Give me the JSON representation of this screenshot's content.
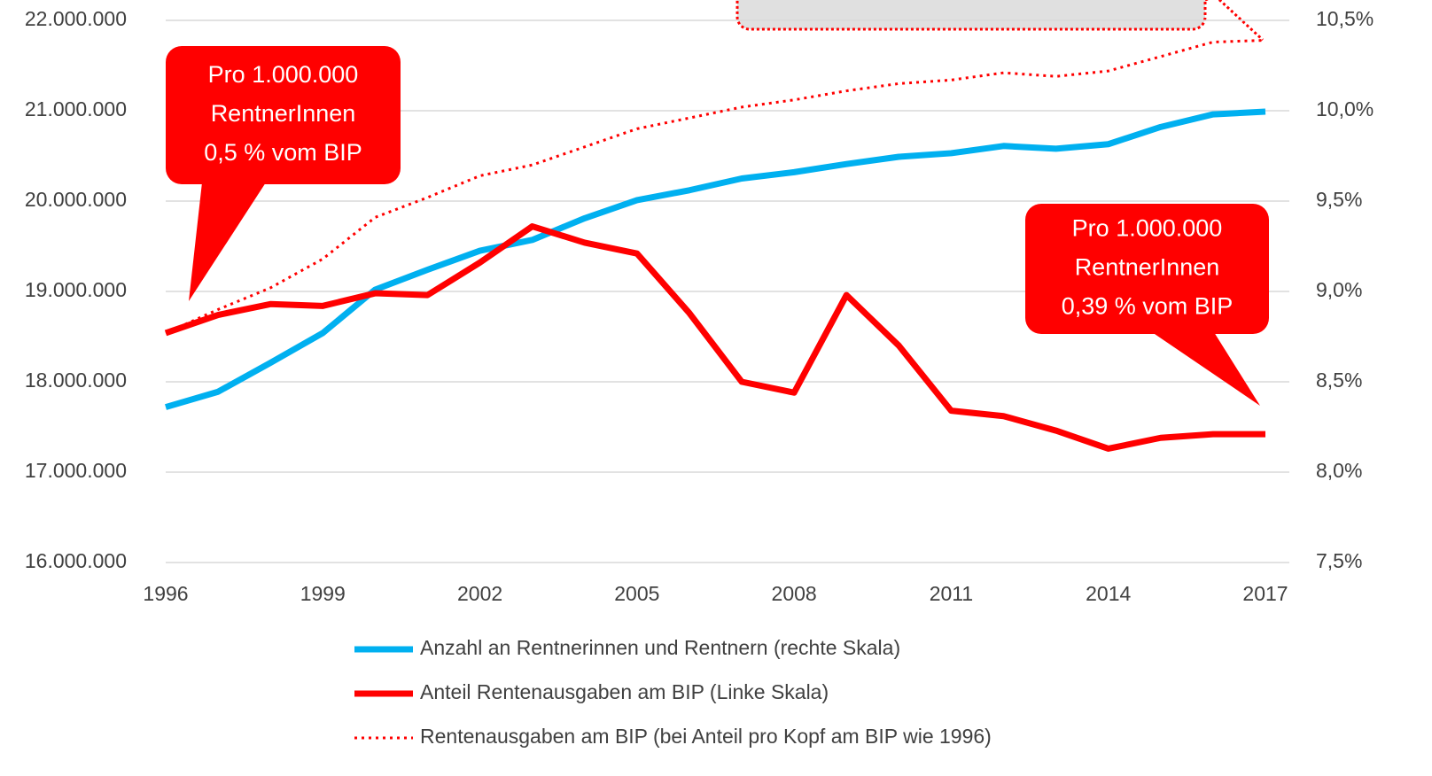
{
  "chart_data": {
    "type": "line",
    "x": [
      1996,
      1997,
      1998,
      1999,
      2000,
      2001,
      2002,
      2003,
      2004,
      2005,
      2006,
      2007,
      2008,
      2009,
      2010,
      2011,
      2012,
      2013,
      2014,
      2015,
      2016,
      2017
    ],
    "xlim": [
      1996,
      2017
    ],
    "xticks": [
      1996,
      1999,
      2002,
      2005,
      2008,
      2011,
      2014,
      2017
    ],
    "ylim": [
      16000000,
      22000000
    ],
    "yticks": [
      {
        "value": 16000000,
        "label": "16.000.000"
      },
      {
        "value": 17000000,
        "label": "17.000.000"
      },
      {
        "value": 18000000,
        "label": "18.000.000"
      },
      {
        "value": 19000000,
        "label": "19.000.000"
      },
      {
        "value": 20000000,
        "label": "20.000.000"
      },
      {
        "value": 21000000,
        "label": "21.000.000"
      },
      {
        "value": 22000000,
        "label": "22.000.000"
      }
    ],
    "y2lim": [
      7.5,
      10.5
    ],
    "y2ticks": [
      {
        "value": 7.5,
        "label": "7,5%"
      },
      {
        "value": 8.0,
        "label": "8,0%"
      },
      {
        "value": 8.5,
        "label": "8,5%"
      },
      {
        "value": 9.0,
        "label": "9,0%"
      },
      {
        "value": 9.5,
        "label": "9,5%"
      },
      {
        "value": 10.0,
        "label": "10,0%"
      },
      {
        "value": 10.5,
        "label": "10,5%"
      }
    ],
    "grid": true,
    "series": [
      {
        "name": "Anzahl an Rentnerinnen und Rentnern (rechte Skala)",
        "color": "#00b0f0",
        "style": "solid",
        "values": [
          17720000,
          17890000,
          18210000,
          18540000,
          19020000,
          19240000,
          19450000,
          19570000,
          19810000,
          20010000,
          20120000,
          20250000,
          20320000,
          20410000,
          20490000,
          20530000,
          20610000,
          20580000,
          20630000,
          20820000,
          20960000,
          20990000
        ]
      },
      {
        "name": "Anteil Rentenausgaben am BIP (Linke Skala)",
        "color": "#ff0000",
        "style": "solid",
        "axis": "y2",
        "values": [
          8.77,
          8.87,
          8.93,
          8.92,
          8.99,
          8.98,
          9.16,
          9.36,
          9.27,
          9.21,
          8.88,
          8.5,
          8.44,
          8.98,
          8.7,
          8.34,
          8.31,
          8.23,
          8.13,
          8.19,
          8.21,
          8.21
        ]
      },
      {
        "name": "Rentenausgaben am BIP (bei Anteil pro Kopf am BIP wie 1996)",
        "color": "#ff0000",
        "style": "dotted",
        "axis": "y2",
        "values": [
          8.77,
          8.9,
          9.02,
          9.18,
          9.41,
          9.52,
          9.64,
          9.7,
          9.8,
          9.9,
          9.96,
          10.02,
          10.06,
          10.11,
          10.15,
          10.17,
          10.21,
          10.19,
          10.22,
          10.3,
          10.38,
          10.39
        ]
      }
    ],
    "annotations": [
      {
        "lines": [
          "Pro 1.000.000",
          "RentnerInnen",
          "0,5 % vom BIP"
        ]
      },
      {
        "lines": [
          "Pro 1.000.000",
          "RentnerInnen",
          "0,39 % vom BIP"
        ]
      }
    ]
  }
}
